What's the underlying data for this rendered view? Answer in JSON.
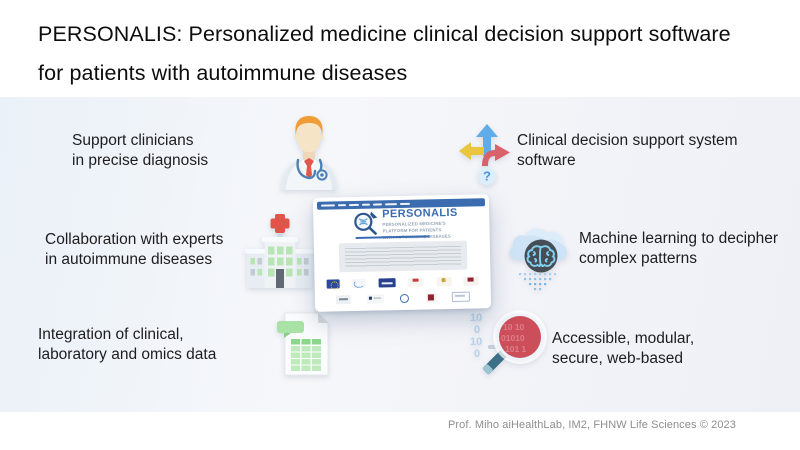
{
  "header": {
    "title": "PERSONALIS: Personalized medicine clinical decision support software\nfor patients with autoimmune diseases"
  },
  "features": {
    "support_clinicians": {
      "icon": "doctor",
      "text": "Support clinicians\nin precise diagnosis"
    },
    "cdss": {
      "icon": "decision-arrows",
      "text": "Clinical decision support system\nsoftware"
    },
    "collaboration": {
      "icon": "hospital",
      "text": "Collaboration with experts\nin autoimmune diseases"
    },
    "machine_learning": {
      "icon": "cloud-brain",
      "text": "Machine learning to decipher\ncomplex patterns"
    },
    "data_integration": {
      "icon": "spreadsheet",
      "text": "Integration of clinical,\nlaboratory and omics data"
    },
    "accessibility": {
      "icon": "magnifier-binary",
      "text": "Accessible, modular,\nsecure, web-based"
    }
  },
  "website": {
    "logo_title": "PERSONALIS",
    "logo_subtitle": "PERSONALIZED MEDICINE'S\nPLATFORM FOR PATIENTS\nWITH AUTOIMMUNE DISEASES",
    "navbar_item_widths": [
      14,
      8,
      10,
      8,
      9,
      12,
      10
    ],
    "partner_logos": {
      "row1": [
        "eu-flag",
        "swirl",
        "grand-est",
        "mark-red",
        "mark-gold",
        "mark-darkred"
      ],
      "row2": [
        "mark-gray",
        "mark-text",
        "circle-blue",
        "square-darkred",
        "framed-blue"
      ]
    }
  },
  "icons": {
    "question_mark": "?",
    "binary_bg": [
      "10",
      "0",
      "10",
      "0"
    ],
    "binary_lens": [
      "10 10",
      "01010",
      "101 1"
    ]
  },
  "footer": {
    "credit": "Prof. Miho aiHealthLab, IM2, FHNW Life Sciences © 2023"
  },
  "colors": {
    "accent_blue": "#3a6cb4",
    "navbar_blue": "#3b6cb0",
    "lens_red": "#cc4e5b",
    "cross_red": "#e0544a",
    "sheet_green": "#9cdd9c",
    "hair_orange": "#f09d38",
    "cloud_blue": "#cee4f6",
    "panel_tint": "#ecf2f9"
  }
}
